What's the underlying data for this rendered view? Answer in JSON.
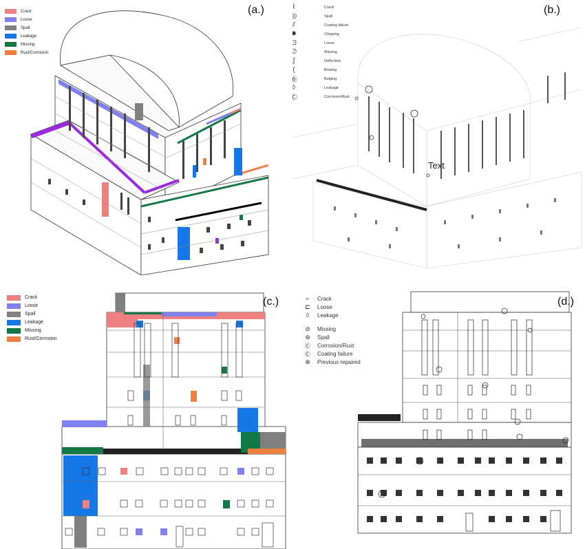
{
  "panels": {
    "a": {
      "label": "(a.)"
    },
    "b": {
      "label": "(b.)",
      "annotation": "Text"
    },
    "c": {
      "label": "(c.)"
    },
    "d": {
      "label": "(d.)"
    }
  },
  "legend_colors": [
    {
      "label": "Crack",
      "color": "#f08080"
    },
    {
      "label": "Loose",
      "color": "#8080f0"
    },
    {
      "label": "Spall",
      "color": "#808080"
    },
    {
      "label": "Leakage",
      "color": "#1478e6"
    },
    {
      "label": "Missing",
      "color": "#147846"
    },
    {
      "label": "Rust/Corrosion",
      "color": "#f08040"
    }
  ],
  "legend_symbols_b": [
    {
      "label": "Crack",
      "icon": "zigzag-crack-icon",
      "glyph": "⌇"
    },
    {
      "label": "Spall",
      "icon": "spall-circle-icon",
      "glyph": "◎"
    },
    {
      "label": "Coating failure",
      "icon": "double-slash-icon",
      "glyph": "⫽"
    },
    {
      "label": "Chipping",
      "icon": "starburst-icon",
      "glyph": "✹"
    },
    {
      "label": "Loose",
      "icon": "square-spiral-icon",
      "glyph": "⊡"
    },
    {
      "label": "Missing",
      "icon": "slashed-zero-icon",
      "glyph": "∅"
    },
    {
      "label": "Deflection",
      "icon": "s-curve-icon",
      "glyph": "∫"
    },
    {
      "label": "Bowing",
      "icon": "arc-icon",
      "glyph": "("
    },
    {
      "label": "Bulging",
      "icon": "circled-b-icon",
      "glyph": "Ⓑ"
    },
    {
      "label": "Leakage",
      "icon": "droplet-icon",
      "glyph": "◊"
    },
    {
      "label": "Corrosion/Rust",
      "icon": "circled-c-icon",
      "glyph": "Ⓒ"
    }
  ],
  "legend_symbols_d": [
    {
      "label": "Crack",
      "icon": "crack-line-icon",
      "glyph": "⌐"
    },
    {
      "label": "Loose",
      "icon": "loose-mark-icon",
      "glyph": "⊏"
    },
    {
      "label": "Leakage",
      "icon": "droplet-icon",
      "glyph": "◊"
    },
    {
      "label": "Missing",
      "icon": "slashed-circle-icon",
      "glyph": "⊘"
    },
    {
      "label": "Spall",
      "icon": "spall-circle-icon",
      "glyph": "⊛"
    },
    {
      "label": "Corrosion/Rust",
      "icon": "circled-c-icon",
      "glyph": "Ⓒ"
    },
    {
      "label": "Coating failure",
      "icon": "coating-circle-icon",
      "glyph": "Ⓒ"
    },
    {
      "label": "Previous repaired",
      "icon": "crossed-circle-icon",
      "glyph": "⊕"
    }
  ]
}
